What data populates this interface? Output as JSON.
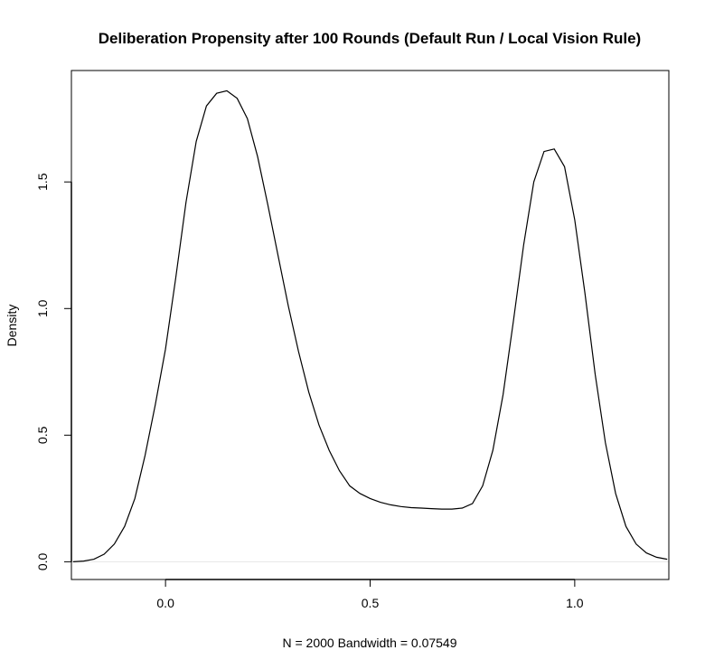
{
  "chart_data": {
    "type": "line",
    "title": "Deliberation Propensity after 100 Rounds (Default Run / Local Vision Rule)",
    "xlabel": "N = 2000   Bandwidth = 0.07549",
    "ylabel": "Density",
    "xlim": [
      -0.23,
      1.23
    ],
    "ylim": [
      -0.07,
      1.94
    ],
    "x_ticks": [
      0.0,
      0.5,
      1.0
    ],
    "x_tick_labels": [
      "0.0",
      "0.5",
      "1.0"
    ],
    "y_ticks": [
      0.0,
      0.5,
      1.0,
      1.5
    ],
    "y_tick_labels": [
      "0.0",
      "0.5",
      "1.0",
      "1.5"
    ],
    "baseline": 0,
    "grid": false,
    "colors": {
      "line": "#000000",
      "baseline": "#e6e6e6",
      "frame": "#000000"
    },
    "series": [
      {
        "x": [
          -0.226,
          -0.2,
          -0.175,
          -0.15,
          -0.125,
          -0.1,
          -0.075,
          -0.05,
          -0.025,
          0.0,
          0.025,
          0.05,
          0.075,
          0.1,
          0.125,
          0.15,
          0.175,
          0.2,
          0.225,
          0.25,
          0.275,
          0.3,
          0.325,
          0.35,
          0.375,
          0.4,
          0.425,
          0.45,
          0.475,
          0.5,
          0.525,
          0.55,
          0.575,
          0.6,
          0.625,
          0.65,
          0.675,
          0.7,
          0.725,
          0.75,
          0.775,
          0.8,
          0.825,
          0.85,
          0.875,
          0.9,
          0.925,
          0.95,
          0.975,
          1.0,
          1.025,
          1.05,
          1.075,
          1.1,
          1.125,
          1.15,
          1.175,
          1.2,
          1.226
        ],
        "y": [
          0.0,
          0.003,
          0.01,
          0.03,
          0.07,
          0.14,
          0.25,
          0.42,
          0.62,
          0.84,
          1.12,
          1.42,
          1.66,
          1.8,
          1.85,
          1.86,
          1.83,
          1.75,
          1.6,
          1.41,
          1.21,
          1.01,
          0.83,
          0.67,
          0.54,
          0.44,
          0.36,
          0.3,
          0.27,
          0.25,
          0.235,
          0.225,
          0.218,
          0.214,
          0.212,
          0.21,
          0.208,
          0.208,
          0.212,
          0.23,
          0.3,
          0.44,
          0.66,
          0.95,
          1.25,
          1.5,
          1.62,
          1.63,
          1.56,
          1.35,
          1.06,
          0.74,
          0.47,
          0.27,
          0.14,
          0.07,
          0.035,
          0.018,
          0.01
        ]
      }
    ]
  }
}
